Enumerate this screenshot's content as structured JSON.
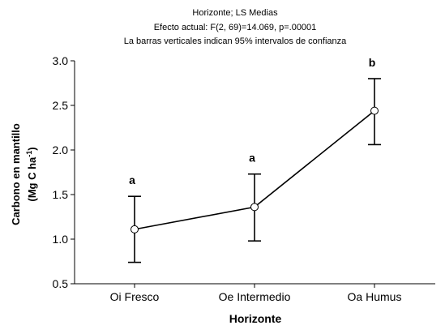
{
  "chart_data": {
    "type": "line",
    "title_lines": [
      "Horizonte; LS Medias",
      "Efecto actual: F(2, 69)=14.069, p=.00001",
      "La barras verticales indican 95% intervalos de confianza"
    ],
    "xlabel": "Horizonte",
    "ylabel_line1": "Carbono en mantillo",
    "ylabel_line2_prefix": "(Mg C ha",
    "ylabel_line2_sup": "-1",
    "ylabel_line2_suffix": ")",
    "categories": [
      "Oi Fresco",
      "Oe Intermedio",
      "Oa Humus"
    ],
    "ylim": [
      0.5,
      3.0
    ],
    "yticks": [
      "0.5",
      "1.0",
      "1.5",
      "2.0",
      "2.5",
      "3.0"
    ],
    "series": [
      {
        "values": [
          1.11,
          1.36,
          2.44
        ],
        "ci_low": [
          0.74,
          0.98,
          2.06
        ],
        "ci_high": [
          1.48,
          1.73,
          2.8
        ]
      }
    ],
    "group_letters": [
      "a",
      "a",
      "b"
    ]
  }
}
